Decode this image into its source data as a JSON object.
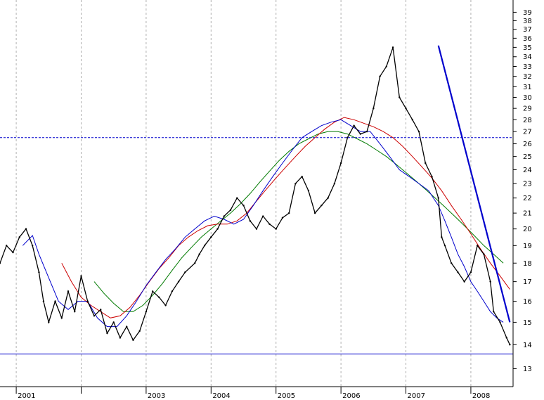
{
  "chart_data": {
    "type": "line",
    "title": "",
    "xlabel": "",
    "ylabel": "",
    "y_scale": "log",
    "ylim": [
      12.3,
      40.5
    ],
    "xlim": [
      2000.75,
      2008.65
    ],
    "grid": true,
    "legend": "none",
    "y_ticks": [
      13,
      14,
      15,
      16,
      17,
      18,
      19,
      20,
      21,
      22,
      23,
      24,
      25,
      26,
      27,
      28,
      29,
      30,
      31,
      32,
      33,
      34,
      35,
      36,
      37,
      38,
      39
    ],
    "x_ticks": [
      {
        "value": 2001.0,
        "label": "2001"
      },
      {
        "value": 2002.0,
        "label": ""
      },
      {
        "value": 2003.0,
        "label": "2003"
      },
      {
        "value": 2004.0,
        "label": "2004"
      },
      {
        "value": 2005.0,
        "label": "2005"
      },
      {
        "value": 2006.0,
        "label": "2006"
      },
      {
        "value": 2007.0,
        "label": "2007"
      },
      {
        "value": 2008.0,
        "label": "2008"
      }
    ],
    "series": [
      {
        "key": "price",
        "color": "#000000",
        "x": [
          2000.75,
          2000.85,
          2000.95,
          2001.05,
          2001.15,
          2001.25,
          2001.35,
          2001.42,
          2001.5,
          2001.6,
          2001.7,
          2001.8,
          2001.9,
          2002.0,
          2002.1,
          2002.2,
          2002.3,
          2002.4,
          2002.5,
          2002.6,
          2002.7,
          2002.8,
          2002.9,
          2003.0,
          2003.1,
          2003.2,
          2003.3,
          2003.4,
          2003.5,
          2003.6,
          2003.75,
          2003.82,
          2003.9,
          2004.0,
          2004.1,
          2004.2,
          2004.3,
          2004.4,
          2004.5,
          2004.6,
          2004.7,
          2004.8,
          2004.9,
          2005.0,
          2005.1,
          2005.2,
          2005.3,
          2005.4,
          2005.5,
          2005.6,
          2005.7,
          2005.8,
          2005.9,
          2006.0,
          2006.1,
          2006.2,
          2006.3,
          2006.4,
          2006.5,
          2006.6,
          2006.7,
          2006.8,
          2006.9,
          2007.0,
          2007.1,
          2007.2,
          2007.3,
          2007.4,
          2007.5,
          2007.55,
          2007.6,
          2007.7,
          2007.8,
          2007.9,
          2008.0,
          2008.1,
          2008.2,
          2008.3,
          2008.35,
          2008.45,
          2008.55,
          2008.6
        ],
        "values": [
          18.0,
          19.0,
          18.6,
          19.5,
          20.0,
          19.0,
          17.5,
          16.0,
          15.0,
          16.0,
          15.2,
          16.5,
          15.5,
          17.3,
          16.0,
          15.3,
          15.6,
          14.5,
          15.0,
          14.3,
          14.8,
          14.2,
          14.6,
          15.5,
          16.5,
          16.2,
          15.8,
          16.5,
          17.0,
          17.5,
          18.0,
          18.5,
          19.0,
          19.5,
          20.0,
          20.8,
          21.2,
          22.0,
          21.5,
          20.5,
          20.0,
          20.8,
          20.3,
          20.0,
          20.7,
          21.0,
          23.0,
          23.5,
          22.5,
          21.0,
          21.5,
          22.0,
          23.0,
          24.5,
          26.5,
          27.5,
          26.8,
          27.0,
          29.0,
          32.0,
          33.0,
          35.0,
          30.0,
          29.0,
          28.0,
          27.0,
          24.5,
          23.5,
          22.0,
          19.5,
          19.0,
          18.0,
          17.5,
          17.0,
          17.5,
          19.0,
          18.5,
          17.0,
          15.5,
          15.0,
          14.3,
          14.0
        ]
      },
      {
        "key": "ma_blue",
        "color": "#0000cc",
        "x": [
          2001.1,
          2001.25,
          2001.35,
          2001.5,
          2001.65,
          2001.8,
          2001.95,
          2002.1,
          2002.25,
          2002.4,
          2002.55,
          2002.7,
          2002.85,
          2003.0,
          2003.15,
          2003.3,
          2003.45,
          2003.6,
          2003.75,
          2003.9,
          2004.05,
          2004.2,
          2004.35,
          2004.5,
          2004.65,
          2004.8,
          2004.95,
          2005.1,
          2005.25,
          2005.4,
          2005.55,
          2005.7,
          2005.85,
          2006.0,
          2006.15,
          2006.3,
          2006.45,
          2006.6,
          2006.75,
          2006.9,
          2007.05,
          2007.2,
          2007.35,
          2007.5,
          2007.6,
          2007.7,
          2007.8,
          2007.9,
          2008.0,
          2008.1,
          2008.2,
          2008.3,
          2008.4,
          2008.5
        ],
        "values": [
          19.0,
          19.6,
          18.5,
          17.2,
          16.0,
          15.6,
          16.0,
          16.0,
          15.2,
          14.8,
          14.8,
          15.3,
          16.0,
          16.8,
          17.5,
          18.2,
          18.8,
          19.5,
          20.0,
          20.5,
          20.8,
          20.6,
          20.3,
          20.6,
          21.5,
          22.5,
          23.5,
          24.5,
          25.5,
          26.5,
          27.0,
          27.5,
          27.8,
          28.0,
          27.5,
          27.0,
          27.0,
          26.0,
          25.0,
          24.0,
          23.5,
          23.0,
          22.5,
          21.5,
          20.5,
          19.5,
          18.5,
          17.8,
          17.0,
          16.5,
          16.0,
          15.5,
          15.2,
          15.0
        ]
      },
      {
        "key": "ma_red",
        "color": "#cc0000",
        "x": [
          2001.7,
          2001.85,
          2002.0,
          2002.15,
          2002.3,
          2002.45,
          2002.6,
          2002.75,
          2002.9,
          2003.05,
          2003.2,
          2003.35,
          2003.5,
          2003.65,
          2003.8,
          2003.95,
          2004.1,
          2004.25,
          2004.4,
          2004.55,
          2004.7,
          2004.85,
          2005.0,
          2005.15,
          2005.3,
          2005.45,
          2005.6,
          2005.75,
          2005.9,
          2006.05,
          2006.2,
          2006.35,
          2006.5,
          2006.65,
          2006.8,
          2006.95,
          2007.1,
          2007.25,
          2007.4,
          2007.55,
          2007.7,
          2007.85,
          2008.0,
          2008.15,
          2008.3,
          2008.45,
          2008.6
        ],
        "values": [
          18.0,
          17.0,
          16.2,
          15.8,
          15.5,
          15.2,
          15.3,
          15.7,
          16.3,
          17.0,
          17.7,
          18.3,
          19.0,
          19.5,
          19.9,
          20.2,
          20.3,
          20.3,
          20.5,
          21.0,
          21.8,
          22.6,
          23.4,
          24.2,
          25.0,
          25.8,
          26.5,
          27.2,
          27.8,
          28.2,
          28.0,
          27.7,
          27.4,
          27.0,
          26.5,
          25.8,
          25.0,
          24.2,
          23.4,
          22.5,
          21.5,
          20.6,
          19.7,
          18.8,
          18.0,
          17.3,
          16.6
        ]
      },
      {
        "key": "ma_green",
        "color": "#007a00",
        "x": [
          2002.2,
          2002.35,
          2002.5,
          2002.65,
          2002.8,
          2002.95,
          2003.1,
          2003.25,
          2003.4,
          2003.55,
          2003.7,
          2003.85,
          2004.0,
          2004.15,
          2004.3,
          2004.45,
          2004.6,
          2004.75,
          2004.9,
          2005.05,
          2005.2,
          2005.35,
          2005.5,
          2005.65,
          2005.8,
          2005.95,
          2006.1,
          2006.25,
          2006.4,
          2006.55,
          2006.7,
          2006.85,
          2007.0,
          2007.15,
          2007.3,
          2007.45,
          2007.6,
          2007.75,
          2007.9,
          2008.05,
          2008.2,
          2008.35,
          2008.5
        ],
        "values": [
          17.0,
          16.4,
          15.9,
          15.5,
          15.5,
          15.8,
          16.3,
          16.9,
          17.6,
          18.3,
          18.9,
          19.5,
          20.0,
          20.5,
          21.0,
          21.6,
          22.3,
          23.1,
          23.9,
          24.7,
          25.4,
          26.0,
          26.4,
          26.8,
          27.0,
          27.0,
          26.8,
          26.4,
          26.0,
          25.5,
          25.0,
          24.4,
          23.8,
          23.2,
          22.6,
          22.0,
          21.4,
          20.8,
          20.2,
          19.6,
          19.0,
          18.5,
          18.0
        ]
      }
    ],
    "annotations": [
      {
        "type": "hline",
        "y": 13.6,
        "color": "#0000cc",
        "style": "solid"
      },
      {
        "type": "hline",
        "y": 26.5,
        "color": "#0000cc",
        "style": "dashed"
      },
      {
        "type": "trendline",
        "x": [
          2007.5,
          2008.6
        ],
        "y": [
          35.2,
          15.0
        ],
        "color": "#0000cc"
      }
    ]
  }
}
